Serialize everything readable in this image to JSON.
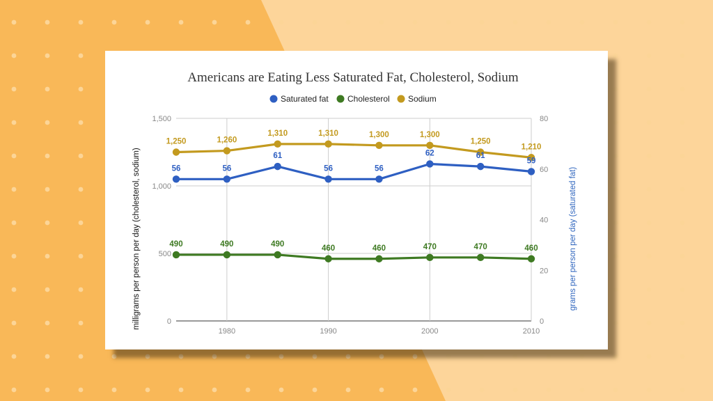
{
  "colors": {
    "background_left": "#f9b858",
    "background_right": "#fdd59a",
    "dots": "#fcd597",
    "card": "#ffffff"
  },
  "chart_data": {
    "type": "line",
    "title": "Americans are Eating Less Saturated Fat, Cholesterol, Sodium",
    "x": [
      1975,
      1980,
      1985,
      1990,
      1995,
      2000,
      2005,
      2010
    ],
    "x_ticks": [
      "1980",
      "1990",
      "2000",
      "2010"
    ],
    "xlim": [
      1975,
      2010
    ],
    "ylabel_left": "milligrams per person per day (cholesterol, sodium)",
    "ylabel_right": "grams per person per day (saturated fat)",
    "ylim_left": [
      0,
      1500
    ],
    "ylim_right": [
      0,
      80
    ],
    "left_ticks": [
      "0",
      "500",
      "1,000",
      "1,500"
    ],
    "right_ticks": [
      "0",
      "20",
      "40",
      "60",
      "80"
    ],
    "grid": true,
    "legend_position": "top",
    "series": [
      {
        "name": "Saturated fat",
        "axis": "right",
        "color": "#2e5fc2",
        "values": [
          56,
          56,
          61,
          56,
          56,
          62,
          61,
          59
        ],
        "labels": [
          "56",
          "56",
          "61",
          "56",
          "56",
          "62",
          "61",
          "59"
        ]
      },
      {
        "name": "Cholesterol",
        "axis": "left",
        "color": "#3e7a22",
        "values": [
          490,
          490,
          490,
          460,
          460,
          470,
          470,
          460
        ],
        "labels": [
          "490",
          "490",
          "490",
          "460",
          "460",
          "470",
          "470",
          "460"
        ]
      },
      {
        "name": "Sodium",
        "axis": "left",
        "color": "#c39a1f",
        "values": [
          1250,
          1260,
          1310,
          1310,
          1300,
          1300,
          1250,
          1210
        ],
        "labels": [
          "1,250",
          "1,260",
          "1,310",
          "1,310",
          "1,300",
          "1,300",
          "1,250",
          "1,210"
        ]
      }
    ]
  }
}
